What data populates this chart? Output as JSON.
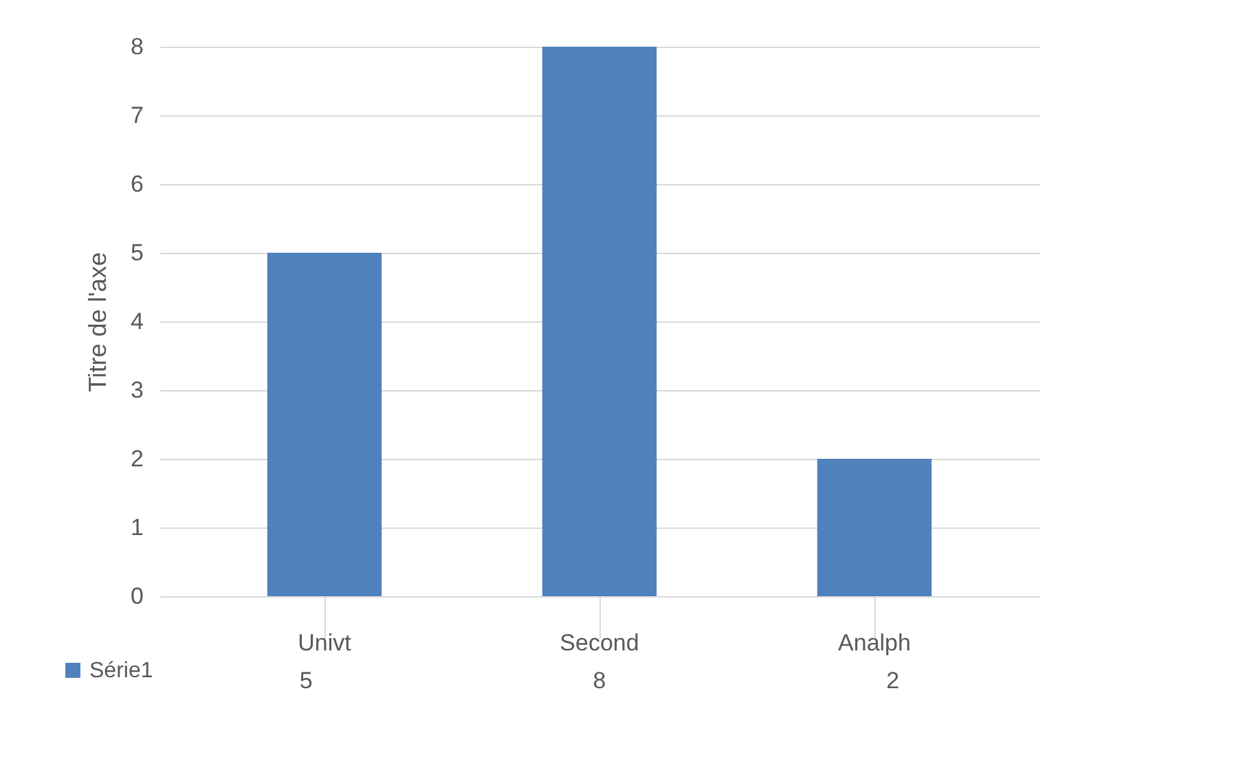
{
  "chart_data": {
    "type": "bar",
    "ylabel": "Titre de l'axe",
    "categories": [
      "Univt",
      "Second",
      "Analph"
    ],
    "series": [
      {
        "name": "Série1",
        "color": "#4f81bd",
        "values": [
          5,
          8,
          2
        ]
      }
    ],
    "ylim": [
      0,
      8
    ],
    "yticks": [
      0,
      1,
      2,
      3,
      4,
      5,
      6,
      7,
      8
    ],
    "grid": "y",
    "data_labels": true,
    "legend": "bottom left"
  }
}
